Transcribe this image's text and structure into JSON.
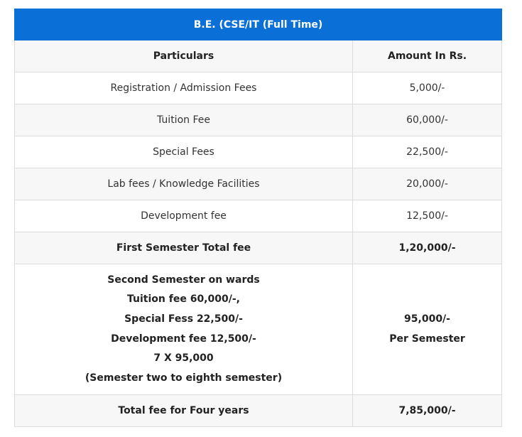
{
  "title": "B.E. (CSE/IT (Full Time)",
  "headers": {
    "particulars": "Particulars",
    "amount": "Amount In Rs."
  },
  "rows": [
    {
      "particular": "Registration / Admission Fees",
      "amount": "5,000/-"
    },
    {
      "particular": "Tuition Fee",
      "amount": "60,000/-"
    },
    {
      "particular": "Special Fees",
      "amount": "22,500/-"
    },
    {
      "particular": "Lab fees / Knowledge Facilities",
      "amount": "20,000/-"
    },
    {
      "particular": "Development fee",
      "amount": "12,500/-"
    }
  ],
  "first_semester_total": {
    "label": "First Semester Total fee",
    "amount": "1,20,000/-"
  },
  "second_semester": {
    "lines": [
      "Second Semester on wards",
      "Tuition fee 60,000/-,",
      "Special Fess 22,500/-",
      "Development fee 12,500/-",
      "7 X 95,000",
      "(Semester two to eighth semester)"
    ],
    "amount_lines": [
      "95,000/-",
      "Per Semester"
    ]
  },
  "four_year_total": {
    "label": "Total fee for Four years",
    "amount": "7,85,000/-"
  },
  "colors": {
    "header_blue": "#0a6fd6",
    "stripe_gray": "#f7f7f7",
    "border_gray": "#dcdcdc"
  }
}
